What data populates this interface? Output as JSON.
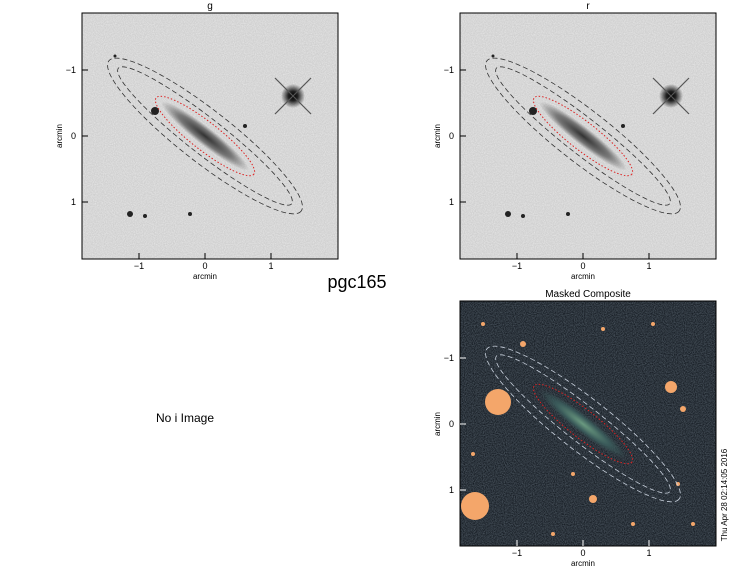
{
  "figure_title": "pgc165",
  "panels": [
    {
      "title": "g",
      "x_label": "arcmin",
      "y_label": "arcmin",
      "xtick_labels": [
        "1",
        "0",
        "−1"
      ],
      "ytick_labels": [
        "1",
        "0",
        "−1"
      ]
    },
    {
      "title": "r",
      "x_label": "arcmin",
      "y_label": "arcmin",
      "xtick_labels": [
        "1",
        "0",
        "−1"
      ],
      "ytick_labels": [
        "1",
        "0",
        "−1"
      ]
    },
    {
      "title": "Masked Composite",
      "x_label": "arcmin",
      "y_label": "arcmin",
      "xtick_labels": [
        "1",
        "0",
        "−1"
      ],
      "ytick_labels": [
        "1",
        "0",
        "−1"
      ]
    }
  ],
  "missing_panel_text": "No i Image",
  "timestamp": "Thu Apr 28 02:14:05 2016"
}
